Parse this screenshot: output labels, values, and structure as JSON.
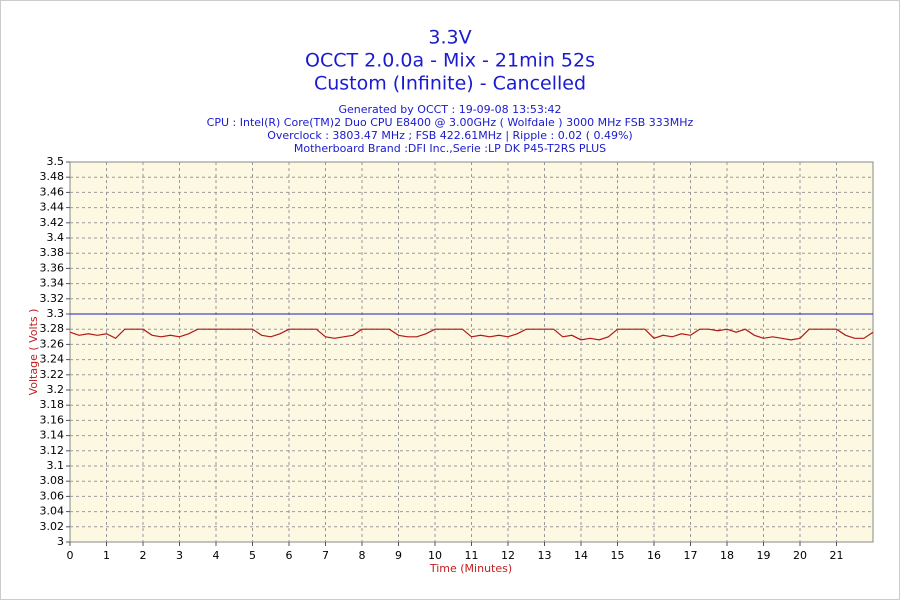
{
  "chart_data": {
    "type": "line",
    "title": "3.3V",
    "subtitle": [
      "OCCT 2.0.0a - Mix - 21min 52s",
      "Custom (Infinite) - Cancelled"
    ],
    "info": [
      "Generated by OCCT : 19-09-08 13:53:42",
      "CPU : Intel(R) Core(TM)2 Duo CPU E8400 @ 3.00GHz ( Wolfdale ) 3000 MHz FSB 333MHz",
      "Overclock : 3803.47 MHz ; FSB 422.61MHz | Ripple : 0.02 ( 0.49%)",
      "Motherboard Brand :DFI Inc.,Serie :LP DK P45-T2RS PLUS"
    ],
    "x_label": "Time (Minutes)",
    "y_label": "Voltage ( Volts )",
    "xlim": [
      0,
      22
    ],
    "xticks": [
      0,
      1,
      2,
      3,
      4,
      5,
      6,
      7,
      8,
      9,
      10,
      11,
      12,
      13,
      14,
      15,
      16,
      17,
      18,
      19,
      20,
      21
    ],
    "ylim": [
      3,
      3.5
    ],
    "yticks": [
      3,
      3.02,
      3.04,
      3.06,
      3.08,
      3.1,
      3.12,
      3.14,
      3.16,
      3.18,
      3.2,
      3.22,
      3.24,
      3.26,
      3.28,
      3.3,
      3.32,
      3.34,
      3.36,
      3.38,
      3.4,
      3.42,
      3.44,
      3.46,
      3.48,
      3.5
    ],
    "grid": true,
    "reference_value": 3.3,
    "reference_color": "#2020c0",
    "x": [
      0,
      0.25,
      0.5,
      0.75,
      1,
      1.25,
      1.5,
      1.75,
      2,
      2.25,
      2.5,
      2.75,
      3,
      3.25,
      3.5,
      3.75,
      4,
      4.25,
      4.5,
      4.75,
      5,
      5.25,
      5.5,
      5.75,
      6,
      6.25,
      6.5,
      6.75,
      7,
      7.25,
      7.5,
      7.75,
      8,
      8.25,
      8.5,
      8.75,
      9,
      9.25,
      9.5,
      9.75,
      10,
      10.25,
      10.5,
      10.75,
      11,
      11.25,
      11.5,
      11.75,
      12,
      12.25,
      12.5,
      12.75,
      13,
      13.25,
      13.5,
      13.75,
      14,
      14.25,
      14.5,
      14.75,
      15,
      15.25,
      15.5,
      15.75,
      16,
      16.25,
      16.5,
      16.75,
      17,
      17.25,
      17.5,
      17.75,
      18,
      18.25,
      18.5,
      18.75,
      19,
      19.25,
      19.5,
      19.75,
      20,
      20.25,
      20.5,
      20.75,
      21,
      21.25,
      21.5,
      21.75,
      22
    ],
    "series": [
      {
        "color": "#b01818",
        "values": [
          3.276,
          3.272,
          3.274,
          3.272,
          3.274,
          3.268,
          3.28,
          3.28,
          3.28,
          3.272,
          3.27,
          3.272,
          3.27,
          3.274,
          3.28,
          3.28,
          3.28,
          3.28,
          3.28,
          3.28,
          3.28,
          3.272,
          3.27,
          3.274,
          3.28,
          3.28,
          3.28,
          3.28,
          3.27,
          3.268,
          3.27,
          3.272,
          3.28,
          3.28,
          3.28,
          3.28,
          3.272,
          3.27,
          3.27,
          3.274,
          3.28,
          3.28,
          3.28,
          3.28,
          3.27,
          3.272,
          3.27,
          3.272,
          3.27,
          3.274,
          3.28,
          3.28,
          3.28,
          3.28,
          3.27,
          3.272,
          3.266,
          3.268,
          3.266,
          3.27,
          3.28,
          3.28,
          3.28,
          3.28,
          3.268,
          3.272,
          3.27,
          3.274,
          3.272,
          3.28,
          3.28,
          3.278,
          3.28,
          3.276,
          3.28,
          3.272,
          3.268,
          3.27,
          3.268,
          3.266,
          3.268,
          3.28,
          3.28,
          3.28,
          3.28,
          3.272,
          3.268,
          3.268,
          3.276
        ]
      }
    ]
  }
}
